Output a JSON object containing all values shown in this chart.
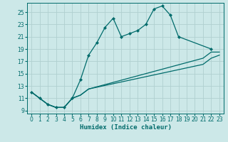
{
  "xlabel": "Humidex (Indice chaleur)",
  "bg_color": "#cce8e8",
  "line_color": "#006b6b",
  "grid_color": "#b0d0d0",
  "xlim": [
    -0.5,
    23.5
  ],
  "ylim": [
    8.5,
    26.5
  ],
  "yticks": [
    9,
    11,
    13,
    15,
    17,
    19,
    21,
    23,
    25
  ],
  "xticks": [
    0,
    1,
    2,
    3,
    4,
    5,
    6,
    7,
    8,
    9,
    10,
    11,
    12,
    13,
    14,
    15,
    16,
    17,
    18,
    19,
    20,
    21,
    22,
    23
  ],
  "line1_x": [
    0,
    1,
    2,
    3,
    4,
    5,
    6,
    7,
    8,
    9,
    10,
    11,
    12,
    13,
    14,
    15,
    16,
    17,
    18,
    22
  ],
  "line1_y": [
    12,
    11,
    10,
    9.5,
    9.5,
    11,
    14,
    18,
    20,
    22.5,
    24,
    21,
    21.5,
    22,
    23,
    25.5,
    26,
    24.5,
    21,
    19
  ],
  "line2_x": [
    0,
    2,
    3,
    4,
    5,
    6,
    7,
    21,
    22,
    23
  ],
  "line2_y": [
    12,
    10,
    9.5,
    9.5,
    11,
    11.5,
    12.5,
    17.5,
    18.5,
    18.5
  ],
  "line3_x": [
    0,
    2,
    3,
    4,
    5,
    6,
    7,
    21,
    22,
    23
  ],
  "line3_y": [
    12,
    10,
    9.5,
    9.5,
    11,
    11.5,
    12.5,
    16.5,
    17.5,
    18
  ],
  "marker": "D",
  "marker_size": 2.0,
  "line_width": 0.9,
  "tick_labelsize": 5.5,
  "xlabel_fontsize": 6.5
}
